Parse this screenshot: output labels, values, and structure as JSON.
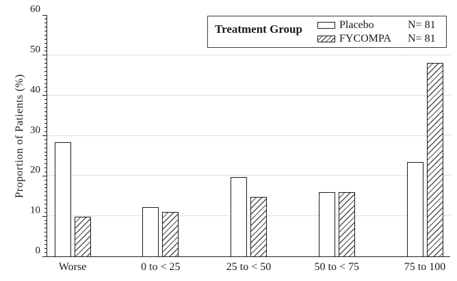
{
  "chart_data": {
    "type": "bar",
    "title": "",
    "xlabel": "",
    "ylabel": "Proportion of Patients (%)",
    "ylim": [
      0,
      60
    ],
    "y_major_ticks": [
      0,
      10,
      20,
      30,
      40,
      50,
      60
    ],
    "y_minor_tick_step": 1,
    "gridlines_at": [
      10,
      20,
      30,
      40,
      50
    ],
    "grid_style": "dotted",
    "categories": [
      "Worse",
      "0 to < 25",
      "25 to < 50",
      "50 to < 75",
      "75 to 100"
    ],
    "series": [
      {
        "name": "Placebo",
        "n_label": "N= 81",
        "fill": "plain",
        "values": [
          28.4,
          12.3,
          19.8,
          16.0,
          23.5
        ]
      },
      {
        "name": "FYCOMPA",
        "n_label": "N= 81",
        "fill": "hatched",
        "values": [
          9.9,
          11.1,
          14.8,
          16.0,
          48.1
        ]
      }
    ],
    "legend": {
      "title": "Treatment Group",
      "position": "top-right"
    }
  },
  "colors": {
    "axis": "#1a1a1a",
    "bar_outline": "#1a1a1a",
    "hatch_line": "#4d4d4d",
    "gridline": "#c9bac2",
    "background": "#ffffff",
    "text": "#1a1a1a"
  }
}
